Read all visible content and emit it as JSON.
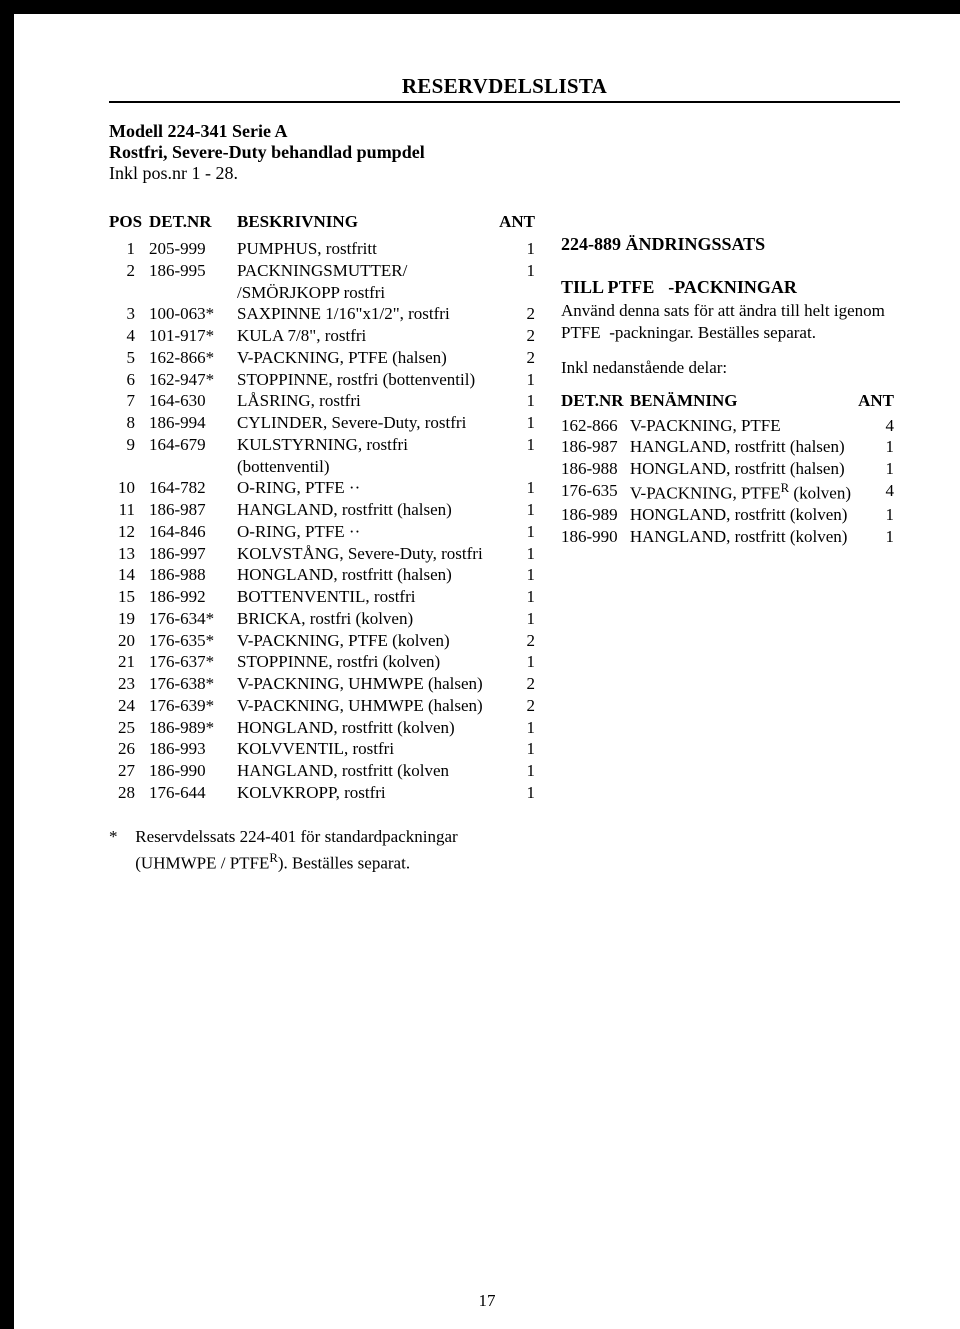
{
  "title": "RESERVDELSLISTA",
  "header": {
    "model": "Modell 224-341  Serie A",
    "desc": "Rostfri, Severe-Duty behandlad pumpdel",
    "inkl": "Inkl pos.nr 1 - 28."
  },
  "left_table": {
    "headers": {
      "pos": "POS",
      "det": "DET.NR",
      "desc": "BESKRIVNING",
      "ant": "ANT"
    },
    "rows": [
      {
        "pos": "1",
        "det": "205-999",
        "desc": "PUMPHUS, rostfritt",
        "ant": "1"
      },
      {
        "pos": "2",
        "det": "186-995",
        "desc": "PACKNINGSMUTTER/ /SMÖRJKOPP rostfri",
        "ant": "1"
      },
      {
        "pos": "3",
        "det": "100-063*",
        "desc": "SAXPINNE 1/16\"x1/2\", rostfri",
        "ant": "2"
      },
      {
        "pos": "4",
        "det": "101-917*",
        "desc": "KULA 7/8\", rostfri",
        "ant": "2"
      },
      {
        "pos": "5",
        "det": "162-866*",
        "desc": "V-PACKNING, PTFE (halsen)",
        "ant": "2"
      },
      {
        "pos": "6",
        "det": "162-947*",
        "desc": "STOPPINNE, rostfri (bottenventil)",
        "ant": "1"
      },
      {
        "pos": "7",
        "det": "164-630",
        "desc": "LÅSRING, rostfri",
        "ant": "1"
      },
      {
        "pos": "8",
        "det": "186-994",
        "desc": "CYLINDER, Severe-Duty, rostfri",
        "ant": "1"
      },
      {
        "pos": "9",
        "det": "164-679",
        "desc": "KULSTYRNING, rostfri (bottenventil)",
        "ant": "1"
      },
      {
        "pos": "10",
        "det": "164-782",
        "desc": "O-RING, PTFE ··",
        "ant": "1"
      },
      {
        "pos": "11",
        "det": "186-987",
        "desc": "HANGLAND, rostfritt (halsen)",
        "ant": "1"
      },
      {
        "pos": "12",
        "det": "164-846",
        "desc": "O-RING, PTFE ··",
        "ant": "1"
      },
      {
        "pos": "13",
        "det": "186-997",
        "desc": "KOLVSTÅNG, Severe-Duty, rostfri",
        "ant": "1"
      },
      {
        "pos": "14",
        "det": "186-988",
        "desc": "HONGLAND, rostfritt (halsen)",
        "ant": "1"
      },
      {
        "pos": "15",
        "det": "186-992",
        "desc": "BOTTENVENTIL, rostfri",
        "ant": "1"
      },
      {
        "pos": "19",
        "det": "176-634*",
        "desc": "BRICKA, rostfri (kolven)",
        "ant": "1"
      },
      {
        "pos": "20",
        "det": "176-635*",
        "desc": "V-PACKNING,  PTFE (kolven)",
        "ant": "2"
      },
      {
        "pos": "21",
        "det": "176-637*",
        "desc": "STOPPINNE, rostfri (kolven)",
        "ant": "1"
      },
      {
        "pos": "23",
        "det": "176-638*",
        "desc": "V-PACKNING, UHMWPE (halsen)",
        "ant": "2"
      },
      {
        "pos": "24",
        "det": "176-639*",
        "desc": "V-PACKNING, UHMWPE (halsen)",
        "ant": "2"
      },
      {
        "pos": "25",
        "det": "186-989*",
        "desc": "HONGLAND, rostfritt (kolven)",
        "ant": "1"
      },
      {
        "pos": "26",
        "det": "186-993",
        "desc": "KOLVVENTIL, rostfri",
        "ant": "1"
      },
      {
        "pos": "27",
        "det": "186-990",
        "desc": "HANGLAND, rostfritt (kolven",
        "ant": "1"
      },
      {
        "pos": "28",
        "det": "176-644",
        "desc": "KOLVKROPP, rostfri",
        "ant": "1"
      }
    ]
  },
  "right": {
    "heading_l1": "224-889 ÄNDRINGSSATS",
    "heading_l2a": "TILL",
    "heading_l2b": "PTFE",
    "heading_l2c": "-PACKNINGAR",
    "para1": "Använd denna sats för att ändra till helt igenom",
    "para2a": "PTFE",
    "para2b": "-packningar. Beställes separat.",
    "para3": "Inkl nedanstående delar:",
    "kit_headers": {
      "det": "DET.NR",
      "ben": "BENÄMNING",
      "ant": "ANT"
    },
    "kit_rows": [
      {
        "det": "162-866",
        "ben": "V-PACKNING, PTFE",
        "ant": "4"
      },
      {
        "det": "186-987",
        "ben": "HANGLAND, rostfritt (halsen)",
        "ant": "1"
      },
      {
        "det": "186-988",
        "ben": "HONGLAND, rostfritt (halsen)",
        "ant": "1"
      },
      {
        "det": "176-635",
        "ben_pre": "V-PACKNING, PTFE",
        "ben_sup": "R",
        "ben_post": " (kolven)",
        "ant": "4"
      },
      {
        "det": "186-989",
        "ben": "HONGLAND, rostfritt (kolven)",
        "ant": "1"
      },
      {
        "det": "186-990",
        "ben": "HANGLAND, rostfritt (kolven)",
        "ant": "1"
      }
    ]
  },
  "footnote": {
    "star": "*",
    "text1": "Reservdelssats 224-401 för standardpackningar",
    "text2a": "(UHMWPE / PTFE",
    "text2sup": "R",
    "text2b": "). Beställes separat."
  },
  "page_number": "17"
}
